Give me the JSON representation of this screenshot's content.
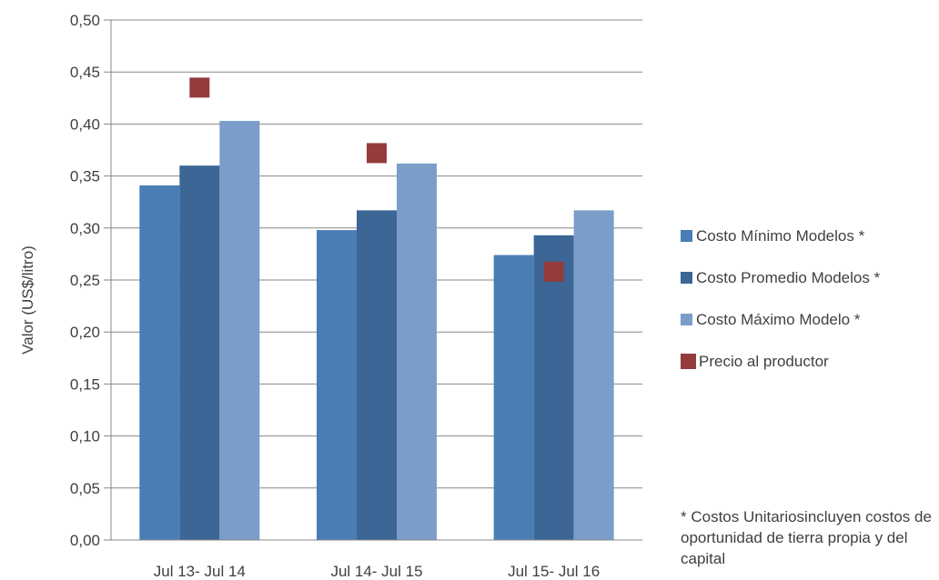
{
  "chart_data": {
    "type": "bar",
    "title": "",
    "xlabel": "",
    "ylabel": "Valor (US$/litro)",
    "ylim": [
      0,
      0.5
    ],
    "yticks": [
      "0,00",
      "0,05",
      "0,10",
      "0,15",
      "0,20",
      "0,25",
      "0,30",
      "0,35",
      "0,40",
      "0,45",
      "0,50"
    ],
    "grid": "horizontal",
    "legend_position": "right",
    "categories": [
      "Jul 13- Jul 14",
      "Jul 14- Jul 15",
      "Jul 15- Jul 16"
    ],
    "series": [
      {
        "name": "Costo Mínimo Modelos *",
        "kind": "bar",
        "color": "#4A7DB5",
        "values": [
          0.341,
          0.298,
          0.274
        ]
      },
      {
        "name": "Costo Promedio Modelos *",
        "kind": "bar",
        "color": "#3B6696",
        "values": [
          0.36,
          0.317,
          0.293
        ]
      },
      {
        "name": "Costo Máximo Modelo *",
        "kind": "bar",
        "color": "#7B9DC9",
        "values": [
          0.403,
          0.362,
          0.317
        ]
      },
      {
        "name": "Precio al productor",
        "kind": "marker",
        "color": "#943B3C",
        "values": [
          0.435,
          0.372,
          0.258
        ]
      }
    ],
    "annotation": "* Costos Unitariosincluyen costos de oportunidad de tierra propia y del capital"
  }
}
